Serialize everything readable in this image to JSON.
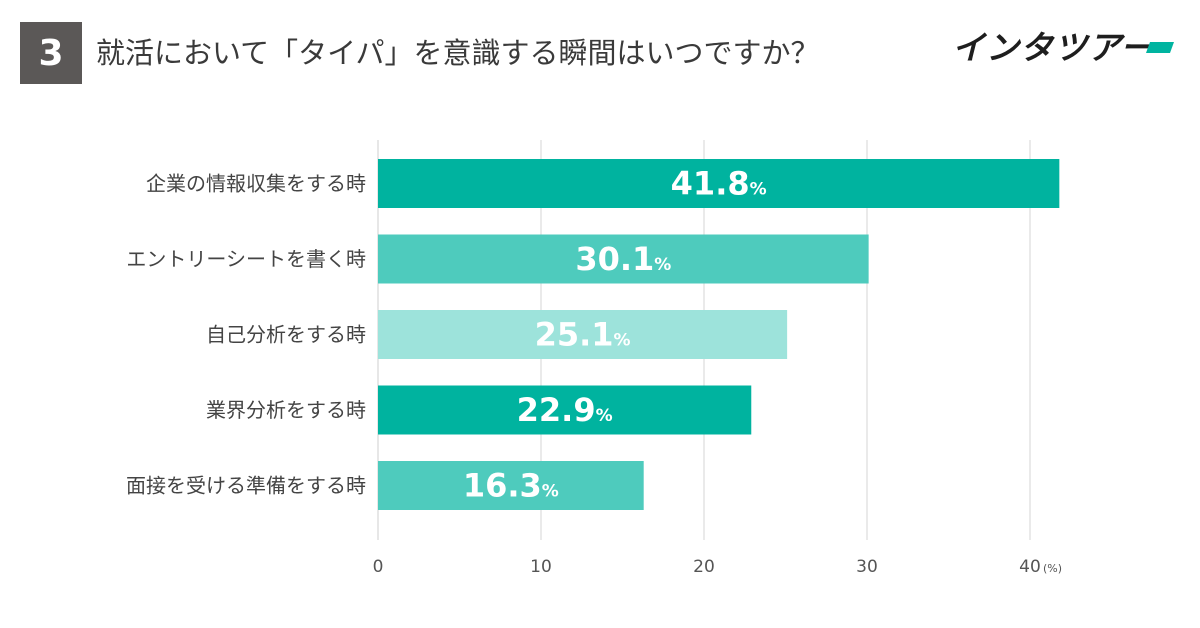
{
  "header": {
    "question_number": "3",
    "title": "就活において「タイパ」を意識する瞬間はいつですか？",
    "logo_text": "インタツアー"
  },
  "chart_data": {
    "type": "bar",
    "orientation": "horizontal",
    "categories": [
      "企業の情報収集をする時",
      "エントリーシートを書く時",
      "自己分析をする時",
      "業界分析をする時",
      "面接を受ける準備をする時"
    ],
    "values": [
      41.8,
      30.1,
      25.1,
      22.9,
      16.3
    ],
    "value_suffix": "%",
    "bar_colors": [
      "#00b39f",
      "#4ecbbd",
      "#9de3db",
      "#00b39f",
      "#4ecbbd"
    ],
    "xlim": [
      0,
      40
    ],
    "xticks": [
      0,
      10,
      20,
      30,
      40
    ],
    "x_unit_label": "(%)",
    "grid": true,
    "title": "就活において「タイパ」を意識する瞬間はいつですか？"
  }
}
